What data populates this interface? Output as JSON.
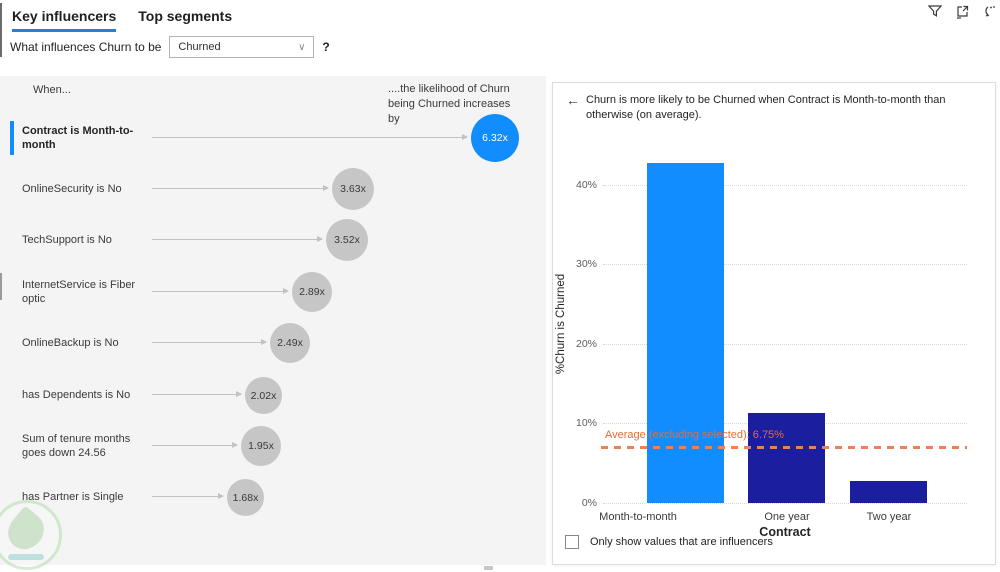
{
  "tabs": {
    "key_influencers": "Key influencers",
    "top_segments": "Top segments"
  },
  "question": {
    "prefix": "What influences Churn to be",
    "dropdown_value": "Churned",
    "suffix": "?"
  },
  "influencers": {
    "when_label": "When...",
    "likelihood_label": "....the likelihood of Churn being Churned increases by",
    "items": [
      {
        "label": "Contract is Month-to-month",
        "value": "6.32x",
        "selected": true
      },
      {
        "label": "OnlineSecurity is No",
        "value": "3.63x",
        "selected": false
      },
      {
        "label": "TechSupport is No",
        "value": "3.52x",
        "selected": false
      },
      {
        "label": "InternetService is Fiber optic",
        "value": "2.89x",
        "selected": false
      },
      {
        "label": "OnlineBackup is No",
        "value": "2.49x",
        "selected": false
      },
      {
        "label": "has Dependents is No",
        "value": "2.02x",
        "selected": false
      },
      {
        "label": "Sum of tenure months goes down 24.56",
        "value": "1.95x",
        "selected": false
      },
      {
        "label": "has Partner is Single",
        "value": "1.68x",
        "selected": false
      }
    ]
  },
  "detail": {
    "title": "Churn is more likely to be Churned when Contract is Month-to-month than otherwise (on average).",
    "checkbox_label": "Only show values that are influencers"
  },
  "chart_data": {
    "type": "bar",
    "title": "Churn is more likely to be Churned when Contract is Month-to-month than otherwise (on average).",
    "categories": [
      "Month-to-month",
      "One year",
      "Two year"
    ],
    "values": [
      42.7,
      11.3,
      2.8
    ],
    "series_colors": [
      "#118DFF",
      "#1B1E9E",
      "#1B1E9E"
    ],
    "xlabel": "Contract",
    "ylabel": "%Churn is Churned",
    "ylim": [
      0,
      45
    ],
    "yticks": [
      {
        "value": 0,
        "label": "0%"
      },
      {
        "value": 10,
        "label": "10%"
      },
      {
        "value": 20,
        "label": "20%"
      },
      {
        "value": 30,
        "label": "30%"
      },
      {
        "value": 40,
        "label": "40%"
      }
    ],
    "grid": "horizontal-dotted",
    "legend": "none",
    "average_line": {
      "value": 6.75,
      "label": "Average (excluding selected): 6.75%",
      "color": "#E66C37"
    }
  },
  "colors": {
    "accent_blue": "#118DFF",
    "dark_bar": "#1B1E9E",
    "average_orange": "#E66C37",
    "tab_underline": "#1F80E8",
    "panel_bg": "#F4F4F4"
  }
}
